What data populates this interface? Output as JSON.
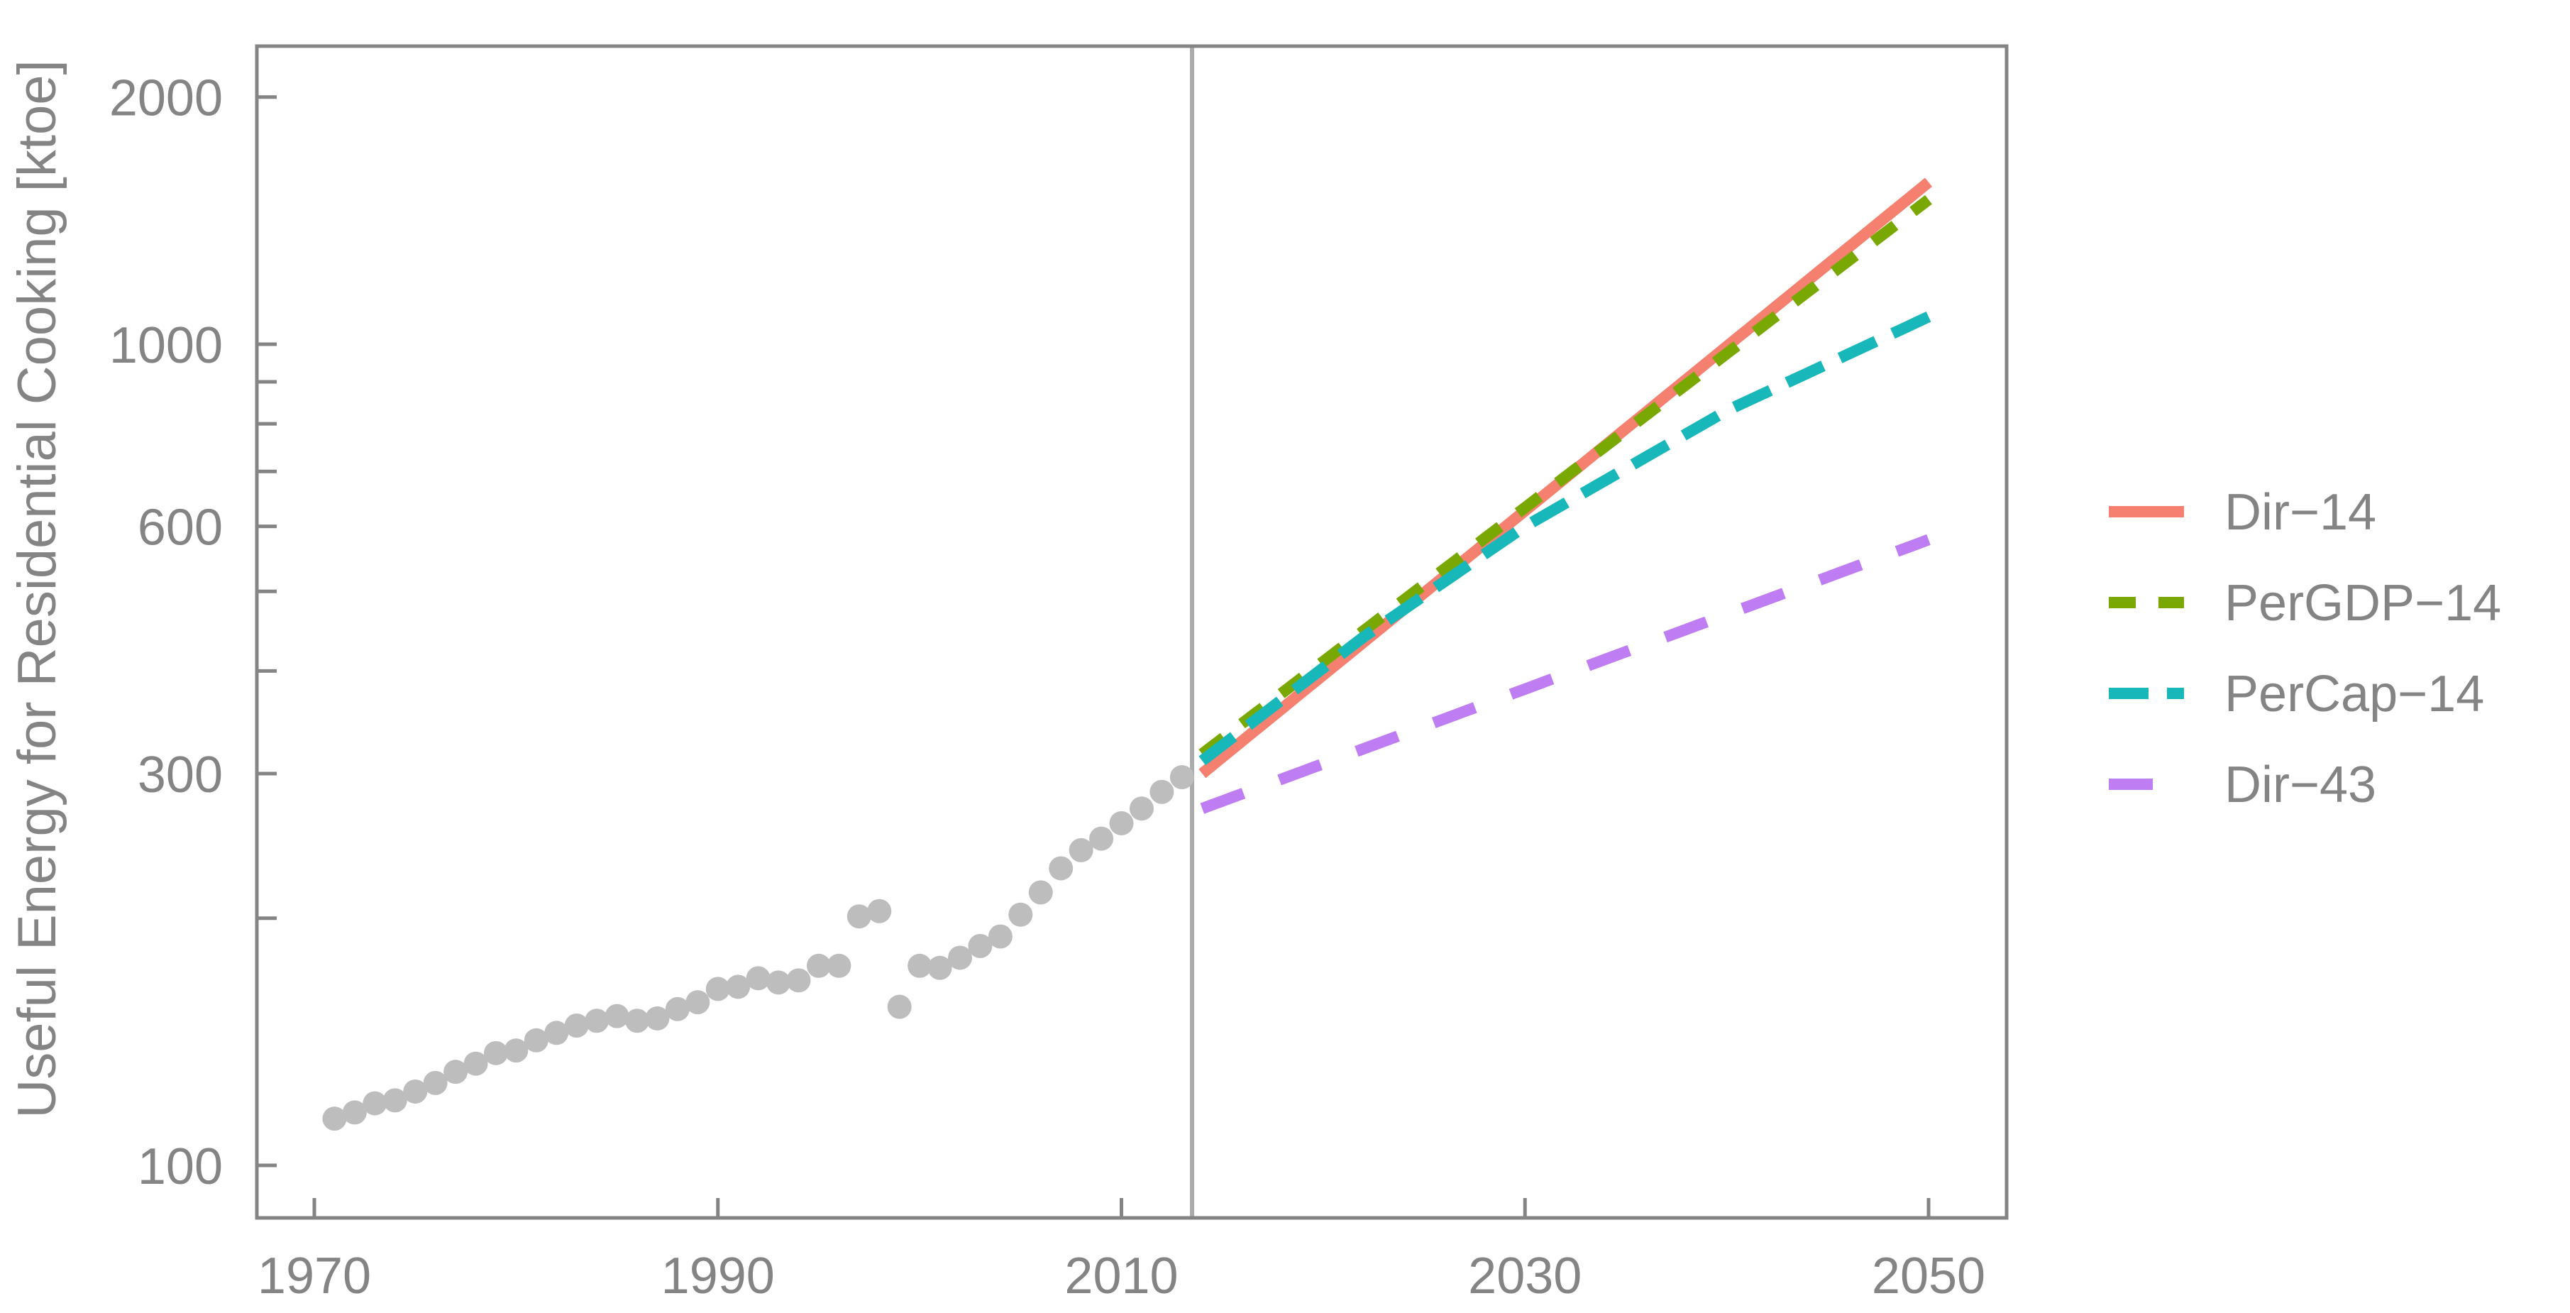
{
  "figure": {
    "background": "#FFFFFF",
    "frame_color": "#848484",
    "divider_color": "#ABABAB",
    "text_color": "#848484"
  },
  "chart_data": {
    "type": "scatter",
    "title": "",
    "xlabel": "",
    "ylabel": "Useful Energy for Residential Cooking [ktoe]",
    "x_axis": {
      "scale": "linear",
      "tick_years": [
        1970,
        1990,
        2010,
        2030,
        2050
      ],
      "tick_labels": [
        "1970",
        "1990",
        "2010",
        "2030",
        "2050"
      ],
      "range": [
        1967.2,
        2053.9
      ]
    },
    "y_axis": {
      "scale": "log",
      "major_ticks": [
        100,
        300,
        600,
        1000,
        2000
      ],
      "major_tick_labels": [
        "100",
        "300",
        "600",
        "1000",
        "2000"
      ],
      "minor_ticks": [
        200,
        400,
        500,
        700,
        800,
        900
      ],
      "range": [
        86,
        2310
      ],
      "unit": "ktoe"
    },
    "divider_year": 2013.5,
    "historical": {
      "name": "historical-data",
      "color": "#BDBDBD",
      "marker_radius": 17,
      "points": [
        [
          1971,
          114
        ],
        [
          1972,
          116
        ],
        [
          1973,
          119
        ],
        [
          1974,
          120
        ],
        [
          1975,
          123
        ],
        [
          1976,
          126
        ],
        [
          1977,
          130
        ],
        [
          1978,
          133
        ],
        [
          1979,
          137
        ],
        [
          1980,
          138
        ],
        [
          1981,
          142
        ],
        [
          1982,
          145
        ],
        [
          1983,
          148
        ],
        [
          1984,
          150
        ],
        [
          1985,
          152
        ],
        [
          1986,
          150
        ],
        [
          1987,
          151
        ],
        [
          1988,
          155
        ],
        [
          1989,
          158
        ],
        [
          1990,
          164
        ],
        [
          1991,
          165
        ],
        [
          1992,
          169
        ],
        [
          1993,
          167
        ],
        [
          1994,
          168
        ],
        [
          1995,
          175
        ],
        [
          1996,
          175
        ],
        [
          1997,
          201
        ],
        [
          1998,
          204
        ],
        [
          1999,
          156
        ],
        [
          2000,
          175
        ],
        [
          2001,
          174
        ],
        [
          2002,
          179
        ],
        [
          2003,
          185
        ],
        [
          2004,
          190
        ],
        [
          2005,
          202
        ],
        [
          2006,
          215
        ],
        [
          2007,
          230
        ],
        [
          2008,
          242
        ],
        [
          2009,
          250
        ],
        [
          2010,
          261
        ],
        [
          2011,
          272
        ],
        [
          2012,
          285
        ],
        [
          2013,
          297
        ]
      ]
    },
    "series": [
      {
        "name": "Dir-14",
        "legend_label": "Dir−14",
        "color": "#F5806F",
        "dash": null,
        "stroke_width": 16,
        "points": [
          [
            2014,
            300
          ],
          [
            2050,
            1575
          ]
        ]
      },
      {
        "name": "PerGDP-14",
        "legend_label": "PerGDP−14",
        "color": "#7AA802",
        "dash": [
          38,
          32
        ],
        "stroke_width": 16,
        "points": [
          [
            2014,
            317
          ],
          [
            2050,
            1500
          ]
        ]
      },
      {
        "name": "PerCap-14",
        "legend_label": "PerCap−14",
        "color": "#17B7BA",
        "dash": [
          56,
          26
        ],
        "stroke_width": 16,
        "points": [
          [
            2014,
            311
          ],
          [
            2022,
            440
          ],
          [
            2030,
            600
          ],
          [
            2040,
            830
          ],
          [
            2050,
            1080
          ]
        ]
      },
      {
        "name": "Dir-43",
        "legend_label": "Dir−43",
        "color": "#BE7DF2",
        "dash": [
          62,
          54
        ],
        "stroke_width": 16,
        "points": [
          [
            2014,
            272
          ],
          [
            2050,
            578
          ]
        ]
      }
    ],
    "legend": {
      "position": "right-outside",
      "items": [
        "Dir−14",
        "PerGDP−14",
        "PerCap−14",
        "Dir−43"
      ]
    },
    "grid": false
  }
}
